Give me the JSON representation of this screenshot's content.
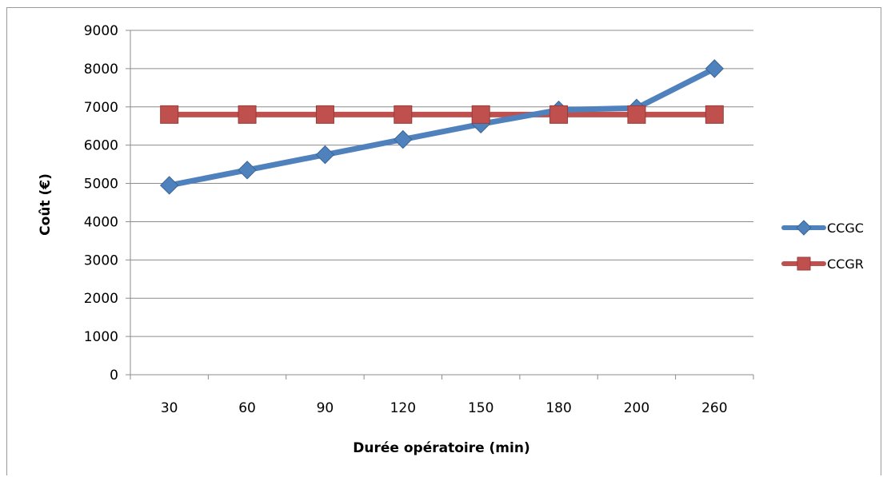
{
  "chart_data": {
    "type": "line",
    "title": "",
    "xlabel": "Durée opératoire (min)",
    "ylabel": "Coût  (€)",
    "categories": [
      "30",
      "60",
      "90",
      "120",
      "150",
      "180",
      "200",
      "260"
    ],
    "ylim": [
      0,
      9000
    ],
    "yticks": [
      "0",
      "1000",
      "2000",
      "3000",
      "4000",
      "5000",
      "6000",
      "7000",
      "8000",
      "9000"
    ],
    "grid": "horizontal",
    "legend_position": "right",
    "series": [
      {
        "name": "CCGC",
        "marker": "diamond",
        "color": "#4f81bd",
        "values": [
          4950,
          5350,
          5750,
          6150,
          6550,
          6920,
          6970,
          8000
        ]
      },
      {
        "name": "CCGR",
        "marker": "square",
        "color": "#c0504d",
        "values": [
          6800,
          6800,
          6800,
          6800,
          6800,
          6800,
          6800,
          6800
        ]
      }
    ]
  }
}
